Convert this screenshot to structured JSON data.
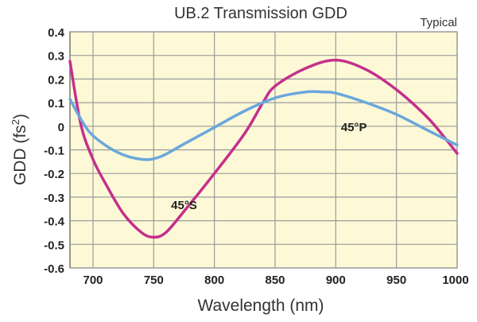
{
  "chart_data": {
    "type": "line",
    "title": "UB.2 Transmission GDD",
    "subtitle": "Typical",
    "xlabel": "Wavelength (nm)",
    "ylabel_main": "GDD (fs",
    "ylabel_sup": "2",
    "ylabel_close": ")",
    "xlim": [
      681,
      1000
    ],
    "ylim": [
      -0.6,
      0.4
    ],
    "grid": true,
    "xticks": [
      700,
      750,
      800,
      850,
      900,
      950,
      1000
    ],
    "xtick_labels": [
      "700",
      "750",
      "800",
      "850",
      "900",
      "950",
      "1000"
    ],
    "yticks": [
      0.4,
      0.3,
      0.2,
      0.1,
      0,
      -0.1,
      -0.2,
      -0.3,
      -0.4,
      -0.5,
      -0.6
    ],
    "ytick_labels": [
      "0.4",
      "0.3",
      "0.2",
      "0.1",
      "0",
      "-0.1",
      "-0.2",
      "-0.3",
      "-0.4",
      "-0.5",
      "-0.6"
    ],
    "background": "#fdf9d6",
    "series": [
      {
        "name": "45°S",
        "color": "#c4308c",
        "label_at": [
          775,
          -0.33
        ],
        "x": [
          681,
          690,
          700,
          710,
          725,
          740,
          750,
          760,
          775,
          800,
          825,
          840,
          850,
          875,
          900,
          925,
          950,
          975,
          990,
          1000
        ],
        "y": [
          0.275,
          0.007,
          -0.14,
          -0.24,
          -0.37,
          -0.45,
          -0.47,
          -0.45,
          -0.36,
          -0.2,
          -0.03,
          0.1,
          0.17,
          0.245,
          0.28,
          0.24,
          0.155,
          0.04,
          -0.05,
          -0.115
        ]
      },
      {
        "name": "45°P",
        "color": "#6aa7dd",
        "label_at": [
          915,
          0.0
        ],
        "x": [
          681,
          690,
          700,
          720,
          740,
          755,
          775,
          800,
          825,
          850,
          875,
          890,
          900,
          925,
          950,
          975,
          1000
        ],
        "y": [
          0.115,
          0.03,
          -0.04,
          -0.11,
          -0.14,
          -0.13,
          -0.075,
          -0.005,
          0.065,
          0.12,
          0.145,
          0.145,
          0.14,
          0.1,
          0.05,
          -0.015,
          -0.08
        ]
      }
    ]
  }
}
